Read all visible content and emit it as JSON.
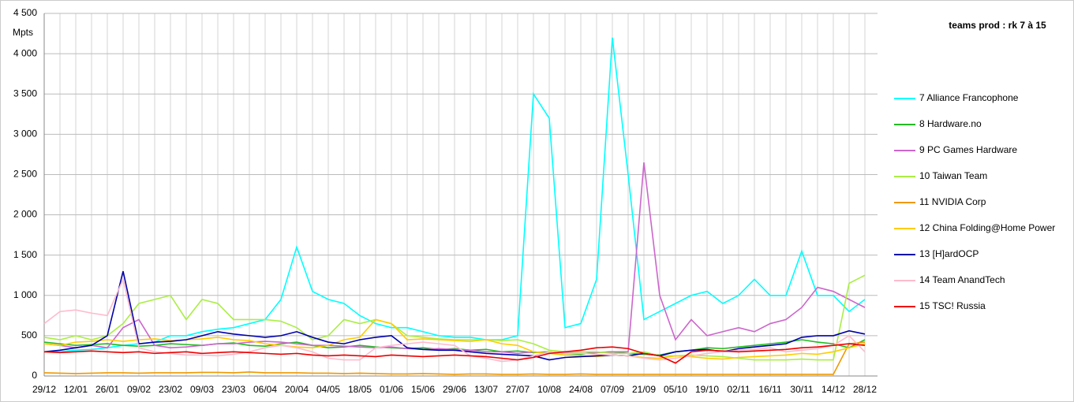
{
  "chart_data": {
    "type": "line",
    "title": "teams prod : rk 7 à 15",
    "ylabel": "Mpts",
    "categories": [
      "29/12",
      null,
      "12/01",
      null,
      "26/01",
      null,
      "09/02",
      null,
      "23/02",
      null,
      "09/03",
      null,
      "23/03",
      null,
      "06/04",
      null,
      "20/04",
      null,
      "04/05",
      null,
      "18/05",
      null,
      "01/06",
      null,
      "15/06",
      null,
      "29/06",
      null,
      "13/07",
      null,
      "27/07",
      null,
      "10/08",
      null,
      "24/08",
      null,
      "07/09",
      null,
      "21/09",
      null,
      "05/10",
      null,
      "19/10",
      null,
      "02/11",
      null,
      "16/11",
      null,
      "30/11",
      null,
      "14/12",
      null,
      "28/12"
    ],
    "ylim": [
      0,
      4500
    ],
    "yticks": [
      0,
      500,
      {
        "value": 1000,
        "label": "1 000"
      },
      {
        "value": 1500,
        "label": "1 500"
      },
      {
        "value": 2000,
        "label": "2 000"
      },
      {
        "value": 2500,
        "label": "2 500"
      },
      {
        "value": 3000,
        "label": "3 000"
      },
      {
        "value": 3500,
        "label": "3 500"
      },
      {
        "value": 4000,
        "label": "4 000"
      },
      {
        "value": 4500,
        "label": "4 500"
      }
    ],
    "grid": true,
    "legend": "right",
    "series": [
      {
        "name": "7 Alliance Francophone",
        "color": "#00ffff",
        "values": [
          300,
          300,
          320,
          330,
          350,
          380,
          400,
          420,
          500,
          500,
          550,
          580,
          600,
          650,
          700,
          950,
          1600,
          1050,
          950,
          900,
          750,
          650,
          600,
          600,
          550,
          500,
          480,
          480,
          450,
          450,
          500,
          3500,
          3200,
          600,
          650,
          1200,
          4200,
          2500,
          700,
          800,
          900,
          1000,
          1050,
          900,
          1000,
          1200,
          1000,
          1000,
          1550,
          1000,
          1000,
          800,
          950
        ]
      },
      {
        "name": "8 Hardware.no",
        "color": "#22bb22",
        "values": [
          420,
          400,
          380,
          390,
          400,
          380,
          370,
          380,
          400,
          390,
          380,
          400,
          410,
          380,
          370,
          400,
          420,
          380,
          350,
          360,
          380,
          360,
          350,
          340,
          350,
          330,
          340,
          320,
          330,
          300,
          310,
          290,
          300,
          280,
          270,
          290,
          300,
          280,
          270,
          260,
          300,
          320,
          350,
          340,
          360,
          380,
          400,
          420,
          450,
          420,
          400,
          350,
          450
        ]
      },
      {
        "name": "9 PC Games Hardware",
        "color": "#cc66cc",
        "values": [
          400,
          380,
          350,
          380,
          350,
          600,
          700,
          380,
          350,
          360,
          380,
          400,
          400,
          420,
          430,
          420,
          400,
          380,
          380,
          370,
          360,
          350,
          360,
          340,
          330,
          340,
          330,
          320,
          300,
          300,
          280,
          300,
          280,
          290,
          300,
          290,
          300,
          300,
          2650,
          1000,
          450,
          700,
          500,
          550,
          600,
          550,
          650,
          700,
          850,
          1100,
          1050,
          950,
          850
        ]
      },
      {
        "name": "10 Taiwan Team",
        "color": "#aaee44",
        "values": [
          480,
          450,
          500,
          450,
          500,
          650,
          900,
          950,
          1000,
          700,
          950,
          900,
          700,
          700,
          700,
          680,
          600,
          450,
          500,
          700,
          650,
          700,
          650,
          500,
          480,
          460,
          450,
          450,
          450,
          440,
          450,
          400,
          320,
          300,
          300,
          300,
          280,
          280,
          300,
          250,
          250,
          260,
          250,
          240,
          220,
          200,
          200,
          200,
          210,
          200,
          200,
          1150,
          1250
        ]
      },
      {
        "name": "11 NVIDIA Corp",
        "color": "#ee9900",
        "values": [
          40,
          35,
          30,
          35,
          40,
          40,
          35,
          40,
          40,
          40,
          45,
          45,
          40,
          50,
          40,
          40,
          40,
          35,
          35,
          30,
          35,
          30,
          25,
          25,
          30,
          25,
          20,
          25,
          25,
          20,
          20,
          25,
          20,
          20,
          25,
          20,
          20,
          20,
          20,
          20,
          20,
          20,
          20,
          20,
          20,
          20,
          20,
          20,
          20,
          20,
          20,
          400,
          420
        ]
      },
      {
        "name": "12 China Folding@Home Power",
        "color": "#ffcc00",
        "values": [
          400,
          380,
          420,
          430,
          450,
          430,
          450,
          460,
          440,
          450,
          460,
          480,
          450,
          440,
          400,
          380,
          360,
          350,
          380,
          450,
          480,
          700,
          650,
          450,
          460,
          450,
          440,
          430,
          450,
          400,
          380,
          300,
          280,
          260,
          250,
          240,
          260,
          250,
          230,
          220,
          250,
          240,
          220,
          210,
          230,
          240,
          250,
          260,
          280,
          270,
          300,
          350,
          400
        ]
      },
      {
        "name": "13 [H]ardOCP",
        "color": "#0000aa",
        "values": [
          300,
          320,
          350,
          380,
          500,
          1300,
          400,
          420,
          430,
          450,
          500,
          550,
          520,
          500,
          480,
          500,
          550,
          480,
          420,
          400,
          450,
          480,
          500,
          350,
          330,
          320,
          320,
          300,
          280,
          270,
          260,
          250,
          200,
          230,
          240,
          250,
          260,
          250,
          280,
          250,
          300,
          320,
          330,
          300,
          340,
          360,
          380,
          400,
          480,
          500,
          500,
          560,
          520
        ]
      },
      {
        "name": "14 Team AnandTech",
        "color": "#ffbbcc",
        "values": [
          650,
          800,
          820,
          780,
          750,
          1200,
          350,
          300,
          280,
          260,
          260,
          250,
          270,
          300,
          350,
          380,
          350,
          300,
          220,
          200,
          200,
          350,
          380,
          400,
          420,
          400,
          380,
          250,
          220,
          180,
          200,
          250,
          300,
          280,
          280,
          270,
          260,
          250,
          220,
          200,
          220,
          250,
          280,
          300,
          320,
          330,
          350,
          300,
          320,
          340,
          380,
          500,
          300
        ]
      },
      {
        "name": "15 TSC! Russia",
        "color": "#ee0000",
        "values": [
          300,
          290,
          300,
          310,
          300,
          290,
          300,
          280,
          290,
          300,
          280,
          290,
          300,
          290,
          280,
          270,
          280,
          260,
          250,
          260,
          250,
          240,
          260,
          250,
          240,
          250,
          260,
          250,
          240,
          220,
          200,
          230,
          280,
          300,
          320,
          350,
          360,
          340,
          280,
          250,
          160,
          300,
          320,
          310,
          300,
          310,
          320,
          330,
          350,
          360,
          380,
          400,
          380
        ]
      }
    ]
  }
}
